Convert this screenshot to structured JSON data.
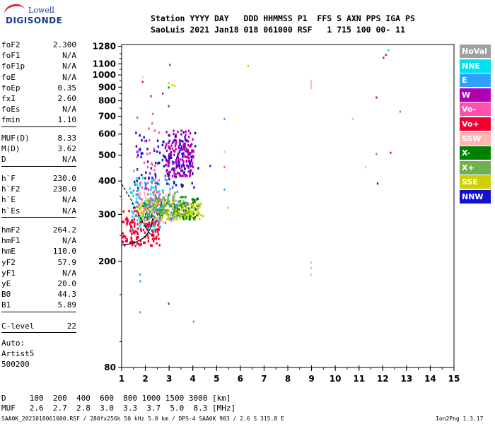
{
  "logo": {
    "line1": "Lowell",
    "line2": "DIGISONDE"
  },
  "header": {
    "line1": "Station YYYY DAY   DDD HHMMSS P1  FFS S AXN PPS IGA PS",
    "line2": "SaoLuis 2021 Jan18 018 061000 RSF   1 715 100 00- 11"
  },
  "params": {
    "block1": [
      {
        "label": "foF2",
        "value": "2.300"
      },
      {
        "label": "foF1",
        "value": "N/A"
      },
      {
        "label": "foF1p",
        "value": "N/A"
      },
      {
        "label": "foE",
        "value": "N/A"
      },
      {
        "label": "foEp",
        "value": "0.35"
      },
      {
        "label": "fxI",
        "value": "2.60"
      },
      {
        "label": "foEs",
        "value": "N/A"
      },
      {
        "label": "fmin",
        "value": "1.10"
      }
    ],
    "block2": [
      {
        "label": "MUF(D)",
        "value": "8.33"
      },
      {
        "label": "M(D)",
        "value": "3.62"
      },
      {
        "label": "D",
        "value": "N/A"
      }
    ],
    "block3": [
      {
        "label": "h`F",
        "value": "230.0"
      },
      {
        "label": "h`F2",
        "value": "230.0"
      },
      {
        "label": "h`E",
        "value": "N/A"
      },
      {
        "label": "h`Es",
        "value": "N/A"
      }
    ],
    "block4": [
      {
        "label": "hmF2",
        "value": "264.2"
      },
      {
        "label": "hmF1",
        "value": "N/A"
      },
      {
        "label": "hmE",
        "value": "110.0"
      },
      {
        "label": "yF2",
        "value": "57.9"
      },
      {
        "label": "yF1",
        "value": "N/A"
      },
      {
        "label": "yE",
        "value": "20.0"
      },
      {
        "label": "B0",
        "value": "44.3"
      },
      {
        "label": "B1",
        "value": "5.89"
      }
    ],
    "block5": [
      {
        "label": "C-level",
        "value": "22"
      }
    ],
    "auto": [
      "Auto:",
      "Artist5",
      "500200"
    ]
  },
  "legend": [
    {
      "label": "NoVal",
      "color": "#a0a0a0"
    },
    {
      "label": "NNE",
      "color": "#00e0f0"
    },
    {
      "label": "E",
      "color": "#30a0ff"
    },
    {
      "label": "W",
      "color": "#b000b0"
    },
    {
      "label": "Vo-",
      "color": "#ff50b0"
    },
    {
      "label": "Vo+",
      "color": "#f00030"
    },
    {
      "label": "SSW",
      "color": "#ffb4b4"
    },
    {
      "label": "X-",
      "color": "#008000"
    },
    {
      "label": "X+",
      "color": "#70b050"
    },
    {
      "label": "SSE",
      "color": "#d0d000"
    },
    {
      "label": "NNW",
      "color": "#1010d0"
    }
  ],
  "footer": {
    "d_line": "D     100  200  400  600  800 1000 1500 3000 [km]",
    "muf_line": "MUF   2.6  2.7  2.8  3.0  3.3  3.7  5.0  8.3 [MHz]",
    "file_line": "SAA0K_2021018061000.RSF / 280fx256h 50 kHz 5.0 km / DPS-4 SAA0K 903 / 2.6 S 315.8 E",
    "version": "Ion2Png 1.3.17"
  },
  "chart_data": {
    "type": "scatter",
    "title": "",
    "xlabel": "",
    "ylabel": "",
    "xlim": [
      1,
      15
    ],
    "ylim": [
      80,
      1300
    ],
    "x_ticks": [
      1,
      2,
      3,
      4,
      5,
      6,
      7,
      8,
      9,
      10,
      11,
      12,
      13,
      14,
      15
    ],
    "y_ticks": [
      80,
      200,
      300,
      400,
      500,
      600,
      700,
      800,
      900,
      1000,
      1100,
      1280
    ],
    "y_scale": "log",
    "grid": false,
    "legend_position": "right",
    "profile_curve": {
      "x": [
        1.0,
        1.3,
        1.6,
        1.9,
        2.1,
        2.25,
        2.3
      ],
      "y": [
        230,
        232,
        236,
        244,
        255,
        270,
        290
      ]
    },
    "trace_curve": {
      "x": [
        1.0,
        1.4,
        1.8,
        2.1,
        2.25,
        2.3
      ],
      "y": [
        390,
        340,
        290,
        260,
        250,
        248
      ]
    },
    "clusters": [
      {
        "name": "Vo+",
        "x": [
          1.0,
          2.6
        ],
        "y": [
          230,
          340
        ],
        "n": 160
      },
      {
        "name": "X-",
        "x": [
          1.8,
          4.2
        ],
        "y": [
          290,
          360
        ],
        "n": 160
      },
      {
        "name": "SSE",
        "x": [
          1.6,
          4.4
        ],
        "y": [
          290,
          350
        ],
        "n": 140
      },
      {
        "name": "W",
        "x": [
          2.8,
          4.0
        ],
        "y": [
          420,
          650
        ],
        "n": 180
      },
      {
        "name": "NNW",
        "x": [
          1.5,
          4.2
        ],
        "y": [
          380,
          650
        ],
        "n": 110
      },
      {
        "name": "NNE",
        "x": [
          1.3,
          2.6
        ],
        "y": [
          260,
          450
        ],
        "n": 70
      },
      {
        "name": "E",
        "x": [
          1.4,
          3.4
        ],
        "y": [
          280,
          420
        ],
        "n": 60
      },
      {
        "name": "SSW",
        "x": [
          1.5,
          3.2
        ],
        "y": [
          280,
          380
        ],
        "n": 50
      },
      {
        "name": "X+",
        "x": [
          2.0,
          3.8
        ],
        "y": [
          300,
          380
        ],
        "n": 60
      },
      {
        "name": "Vo-",
        "x": [
          1.6,
          2.6
        ],
        "y": [
          300,
          800
        ],
        "n": 50
      }
    ],
    "isolated_points": [
      {
        "x": 12.2,
        "y": 1250,
        "series": "NNE"
      },
      {
        "x": 12.1,
        "y": 1200,
        "series": "Vo+"
      },
      {
        "x": 12.0,
        "y": 1170,
        "series": "W"
      },
      {
        "x": 6.3,
        "y": 1090,
        "series": "SSE"
      },
      {
        "x": 3.0,
        "y": 1100,
        "series": "W"
      },
      {
        "x": 8.95,
        "y": 960,
        "series": "SSW"
      },
      {
        "x": 8.95,
        "y": 940,
        "series": "SSW"
      },
      {
        "x": 8.95,
        "y": 920,
        "series": "SSW"
      },
      {
        "x": 8.95,
        "y": 900,
        "series": "SSW"
      },
      {
        "x": 11.7,
        "y": 830,
        "series": "W"
      },
      {
        "x": 12.7,
        "y": 735,
        "series": "E"
      },
      {
        "x": 10.7,
        "y": 690,
        "series": "SSW"
      },
      {
        "x": 5.3,
        "y": 690,
        "series": "E"
      },
      {
        "x": 5.3,
        "y": 520,
        "series": "SSW"
      },
      {
        "x": 11.7,
        "y": 510,
        "series": "E"
      },
      {
        "x": 12.3,
        "y": 515,
        "series": "Vo+"
      },
      {
        "x": 11.25,
        "y": 455,
        "series": "SSW"
      },
      {
        "x": 5.3,
        "y": 455,
        "series": "Vo-"
      },
      {
        "x": 5.3,
        "y": 375,
        "series": "E"
      },
      {
        "x": 11.75,
        "y": 395,
        "series": "NNW"
      },
      {
        "x": 5.45,
        "y": 320,
        "series": "SSE"
      },
      {
        "x": 8.95,
        "y": 200,
        "series": "SSW"
      },
      {
        "x": 8.95,
        "y": 190,
        "series": "SSW"
      },
      {
        "x": 8.95,
        "y": 180,
        "series": "SSW"
      },
      {
        "x": 1.75,
        "y": 180,
        "series": "E"
      },
      {
        "x": 1.75,
        "y": 170,
        "series": "E"
      },
      {
        "x": 1.75,
        "y": 130,
        "series": "E"
      },
      {
        "x": 2.95,
        "y": 140,
        "series": "X-"
      },
      {
        "x": 3.1,
        "y": 925,
        "series": "SSE"
      },
      {
        "x": 3.2,
        "y": 920,
        "series": "SSE"
      },
      {
        "x": 2.95,
        "y": 905,
        "series": "X-"
      },
      {
        "x": 2.95,
        "y": 940,
        "series": "SSE"
      },
      {
        "x": 2.7,
        "y": 860,
        "series": "W"
      },
      {
        "x": 2.2,
        "y": 840,
        "series": "W"
      },
      {
        "x": 1.85,
        "y": 990,
        "series": "SSW"
      },
      {
        "x": 1.85,
        "y": 950,
        "series": "Vo+"
      },
      {
        "x": 2.95,
        "y": 770,
        "series": "X-"
      },
      {
        "x": 4.0,
        "y": 120,
        "series": "E"
      },
      {
        "x": 4.7,
        "y": 460,
        "series": "NNW"
      }
    ]
  }
}
